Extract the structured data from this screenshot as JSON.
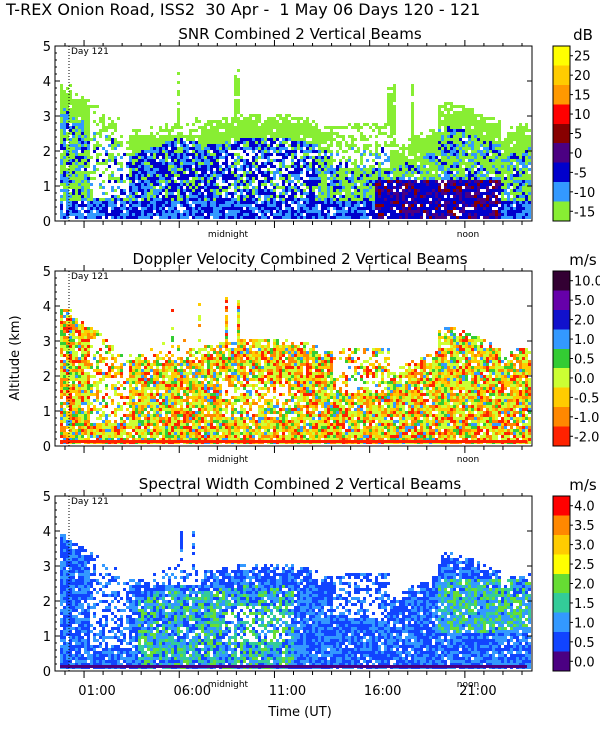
{
  "header": "T-REX Onion Road, ISS2  30 Apr -  1 May 06 Days 120 - 121",
  "ylabel": "Altitude (km)",
  "xlabel": "Time (UT)",
  "chart_data": [
    {
      "type": "heatmap",
      "title": "SNR Combined 2 Vertical Beams",
      "units": "dB",
      "colorbar": {
        "labels": [
          "25",
          "20",
          "15",
          "10",
          "5",
          "0",
          "-5",
          "-10",
          "-15"
        ],
        "colors": [
          "#ffff00",
          "#ffcc00",
          "#ff9900",
          "#ff0000",
          "#880000",
          "#4b0082",
          "#0000cc",
          "#3399ff",
          "#88ee33"
        ]
      },
      "ylim": [
        0,
        5
      ],
      "yticks": [
        "0",
        "1",
        "2",
        "3",
        "4",
        "5"
      ],
      "day_marker": "Day 121",
      "markers": [
        "midnight",
        "noon"
      ]
    },
    {
      "type": "heatmap",
      "title": "Doppler Velocity Combined 2 Vertical Beams",
      "units": "m/s",
      "colorbar": {
        "labels": [
          "10.0",
          "5.0",
          "2.0",
          "1.0",
          "0.5",
          "0.0",
          "-0.5",
          "-1.0",
          "-2.0"
        ],
        "colors": [
          "#330033",
          "#6600aa",
          "#1111cc",
          "#3399ff",
          "#33cc33",
          "#ccff33",
          "#ffcc00",
          "#ff8800",
          "#ff2200"
        ]
      },
      "ylim": [
        0,
        5
      ],
      "yticks": [
        "0",
        "1",
        "2",
        "3",
        "4",
        "5"
      ],
      "day_marker": "Day 121",
      "markers": [
        "midnight",
        "noon"
      ]
    },
    {
      "type": "heatmap",
      "title": "Spectral Width Combined 2 Vertical Beams",
      "units": "m/s",
      "colorbar": {
        "labels": [
          "4.0",
          "3.5",
          "3.0",
          "2.5",
          "2.0",
          "1.5",
          "1.0",
          "0.5",
          "0.0"
        ],
        "colors": [
          "#ff0000",
          "#ff8800",
          "#ffcc00",
          "#ffff00",
          "#66dd33",
          "#33cc99",
          "#3399ff",
          "#1144ff",
          "#4b0082"
        ]
      },
      "ylim": [
        0,
        5
      ],
      "yticks": [
        "0",
        "1",
        "2",
        "3",
        "4",
        "5"
      ],
      "day_marker": "Day 121",
      "markers": [
        "midnight",
        "noon"
      ],
      "xticks": [
        "01:00",
        "06:00",
        "11:00",
        "16:00",
        "21:00"
      ]
    }
  ]
}
